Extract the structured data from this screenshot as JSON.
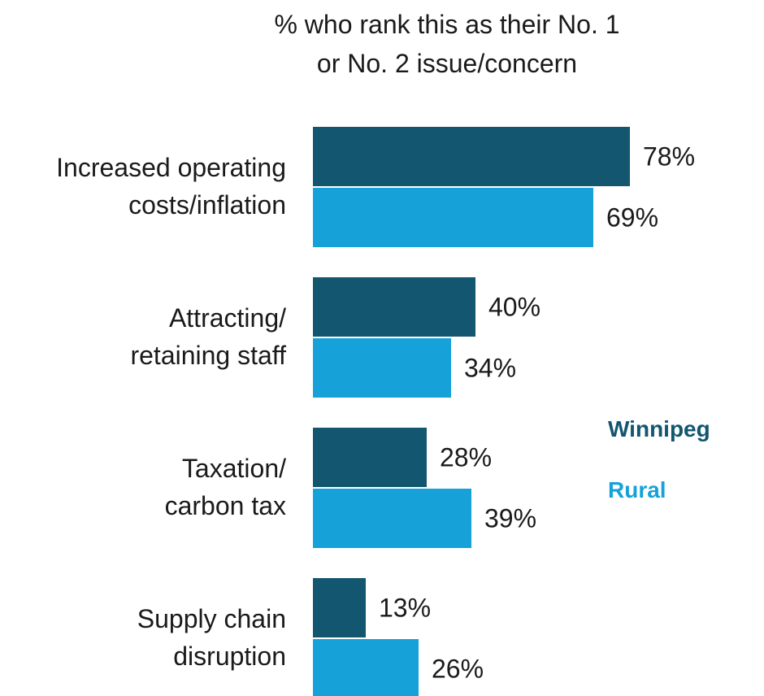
{
  "chart_data": {
    "type": "bar",
    "orientation": "horizontal",
    "title_lines": [
      "% who rank this as their No. 1",
      "or No. 2 issue/concern"
    ],
    "categories": [
      [
        "Increased operating",
        "costs/inflation"
      ],
      [
        "Attracting/",
        "retaining staff"
      ],
      [
        "Taxation/",
        "carbon tax"
      ],
      [
        "Supply chain",
        "disruption"
      ]
    ],
    "series": [
      {
        "name": "Winnipeg",
        "color": "#12566f",
        "values": [
          78,
          40,
          28,
          13
        ],
        "labels": [
          "78%",
          "40%",
          "28%",
          "13%"
        ]
      },
      {
        "name": "Rural",
        "color": "#16a2d9",
        "values": [
          69,
          34,
          39,
          26
        ],
        "labels": [
          "69%",
          "34%",
          "39%",
          "26%"
        ]
      }
    ],
    "value_unit": "%",
    "legend_placement": "right",
    "grid": false,
    "axes_visible": false
  }
}
